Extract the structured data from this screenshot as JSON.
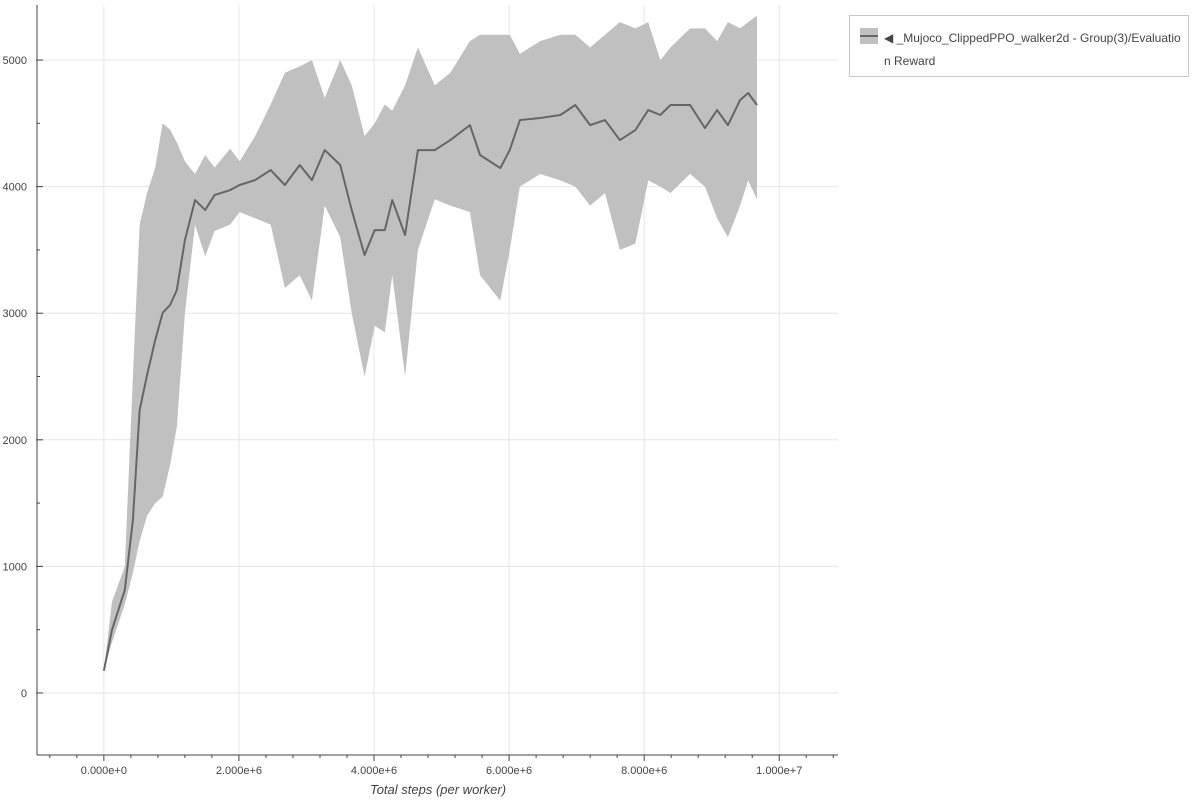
{
  "chart_data": {
    "type": "area",
    "title": "",
    "xlabel": "Total steps (per worker)",
    "ylabel": "",
    "xlim": [
      -990000,
      10870000
    ],
    "ylim": [
      -490,
      5435
    ],
    "grid": true,
    "legend_placement": "outside-top-right",
    "x_ticks": [
      0,
      2000000,
      4000000,
      6000000,
      8000000,
      10000000
    ],
    "x_tick_labels": [
      "0.000e+0",
      "2.000e+6",
      "4.000e+6",
      "6.000e+6",
      "8.000e+6",
      "1.000e+7"
    ],
    "y_ticks": [
      0,
      1000,
      2000,
      3000,
      4000,
      5000
    ],
    "y_tick_labels": [
      "0",
      "1000",
      "2000",
      "3000",
      "4000",
      "5000"
    ],
    "colors": {
      "band": "#c0c0c0",
      "line": "#666666"
    },
    "series": [
      {
        "name": "◀ _Mujoco_ClippedPPO_walker2d - Group(3)/Evaluation Reward",
        "x": [
          0,
          120000,
          310000,
          430000,
          530000,
          640000,
          760000,
          870000,
          980000,
          1080000,
          1200000,
          1350000,
          1500000,
          1640000,
          1870000,
          2010000,
          2240000,
          2470000,
          2680000,
          2900000,
          3080000,
          3270000,
          3500000,
          3670000,
          3860000,
          4010000,
          4160000,
          4270000,
          4460000,
          4650000,
          4900000,
          5130000,
          5420000,
          5570000,
          5870000,
          6010000,
          6160000,
          6460000,
          6760000,
          6980000,
          7200000,
          7420000,
          7640000,
          7870000,
          8060000,
          8240000,
          8390000,
          8680000,
          8900000,
          9080000,
          9240000,
          9420000,
          9540000,
          9670000
        ],
        "mean": [
          174,
          498,
          814,
          1367,
          2236,
          2512,
          2788,
          3002,
          3065,
          3183,
          3578,
          3894,
          3815,
          3934,
          3973,
          4013,
          4052,
          4131,
          4013,
          4171,
          4052,
          4289,
          4171,
          3815,
          3460,
          3657,
          3657,
          3894,
          3618,
          4289,
          4289,
          4368,
          4486,
          4250,
          4147,
          4289,
          4526,
          4542,
          4566,
          4645,
          4486,
          4526,
          4368,
          4447,
          4605,
          4566,
          4645,
          4645,
          4463,
          4605,
          4486,
          4684,
          4740,
          4645
        ],
        "upper": [
          174,
          720,
          1000,
          2500,
          3700,
          3950,
          4150,
          4500,
          4450,
          4350,
          4200,
          4100,
          4250,
          4150,
          4300,
          4200,
          4400,
          4650,
          4900,
          4950,
          5000,
          4700,
          5000,
          4800,
          4400,
          4500,
          4650,
          4600,
          4800,
          5100,
          4800,
          4900,
          5150,
          5200,
          5200,
          5200,
          5050,
          5150,
          5200,
          5200,
          5100,
          5200,
          5300,
          5250,
          5300,
          5000,
          5100,
          5250,
          5250,
          5150,
          5300,
          5250,
          5300,
          5350
        ],
        "lower": [
          174,
          400,
          700,
          950,
          1200,
          1400,
          1500,
          1550,
          1800,
          2100,
          3000,
          3700,
          3450,
          3650,
          3700,
          3800,
          3750,
          3700,
          3200,
          3300,
          3100,
          3850,
          3600,
          3000,
          2500,
          2900,
          2850,
          3300,
          2500,
          3500,
          3900,
          3850,
          3800,
          3300,
          3100,
          3500,
          4000,
          4100,
          4050,
          4000,
          3850,
          3950,
          3500,
          3550,
          4050,
          4000,
          3950,
          4100,
          4000,
          3750,
          3600,
          3850,
          4050,
          3900
        ]
      }
    ]
  },
  "legend": {
    "text": "◀ _Mujoco_ClippedPPO_walker2d - Group(3)/Evaluation Reward"
  }
}
